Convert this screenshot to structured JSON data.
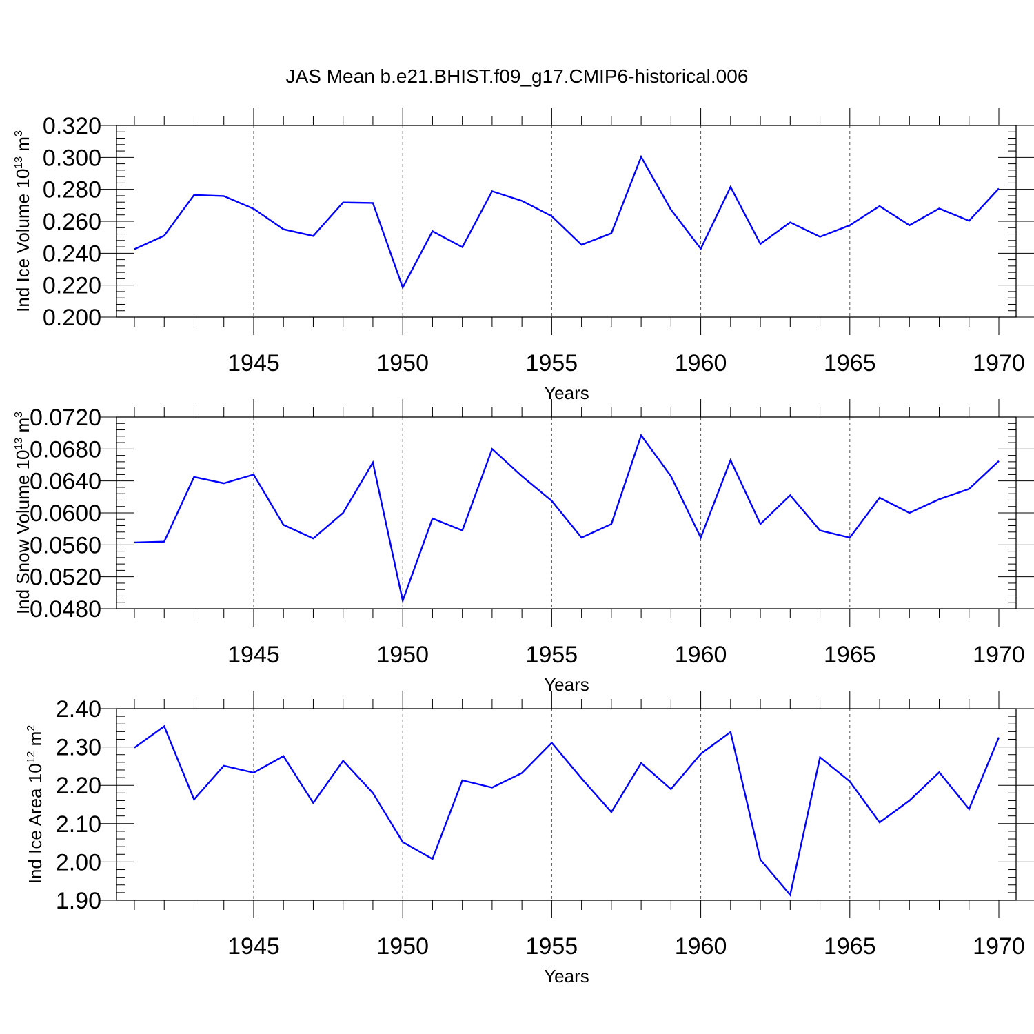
{
  "title": "JAS Mean b.e21.BHIST.f09_g17.CMIP6-historical.006",
  "colors": {
    "line": "#0000ff",
    "frame": "#000000",
    "grid": "#555555"
  },
  "chart_data": [
    {
      "type": "line",
      "xlabel": "Years",
      "ylabel": {
        "main": "Ind Ice Volume 10",
        "exp": "13",
        "unit": " m",
        "unit_exp": "3"
      },
      "xlim": [
        1941,
        1970
      ],
      "ylim": [
        0.2,
        0.32
      ],
      "xticks": [
        1945,
        1950,
        1955,
        1960,
        1965,
        1970
      ],
      "yticks": [
        "0.200",
        "0.220",
        "0.240",
        "0.260",
        "0.280",
        "0.300",
        "0.320"
      ],
      "grid": "vertical dashed at major x ticks",
      "x": [
        1941,
        1942,
        1943,
        1944,
        1945,
        1946,
        1947,
        1948,
        1949,
        1950,
        1951,
        1952,
        1953,
        1954,
        1955,
        1956,
        1957,
        1958,
        1959,
        1960,
        1961,
        1962,
        1963,
        1964,
        1965,
        1966,
        1967,
        1968,
        1969,
        1970
      ],
      "series": [
        {
          "values": [
            0.2425,
            0.251,
            0.2765,
            0.2758,
            0.2678,
            0.255,
            0.2508,
            0.2718,
            0.2715,
            0.2185,
            0.2538,
            0.2438,
            0.2788,
            0.2728,
            0.2632,
            0.2453,
            0.2525,
            0.3003,
            0.2673,
            0.2428,
            0.2815,
            0.2458,
            0.2593,
            0.2503,
            0.2575,
            0.2695,
            0.2575,
            0.268,
            0.2603,
            0.2805
          ]
        }
      ]
    },
    {
      "type": "line",
      "xlabel": "Years",
      "ylabel": {
        "main": "Ind Snow Volume 10",
        "exp": "13",
        "unit": " m",
        "unit_exp": "3"
      },
      "xlim": [
        1941,
        1970
      ],
      "ylim": [
        0.048,
        0.072
      ],
      "xticks": [
        1945,
        1950,
        1955,
        1960,
        1965,
        1970
      ],
      "yticks": [
        "0.0480",
        "0.0520",
        "0.0560",
        "0.0600",
        "0.0640",
        "0.0680",
        "0.0720"
      ],
      "grid": "vertical dashed at major x ticks",
      "x": [
        1941,
        1942,
        1943,
        1944,
        1945,
        1946,
        1947,
        1948,
        1949,
        1950,
        1951,
        1952,
        1953,
        1954,
        1955,
        1956,
        1957,
        1958,
        1959,
        1960,
        1961,
        1962,
        1963,
        1964,
        1965,
        1966,
        1967,
        1968,
        1969,
        1970
      ],
      "series": [
        {
          "values": [
            0.0563,
            0.0564,
            0.0645,
            0.0637,
            0.0648,
            0.0585,
            0.0568,
            0.06,
            0.0663,
            0.049,
            0.0593,
            0.0578,
            0.068,
            0.0646,
            0.0615,
            0.0569,
            0.0586,
            0.0697,
            0.0646,
            0.0569,
            0.0666,
            0.0586,
            0.0622,
            0.0578,
            0.0569,
            0.0619,
            0.06,
            0.0617,
            0.063,
            0.0665
          ]
        }
      ]
    },
    {
      "type": "line",
      "xlabel": "Years",
      "ylabel": {
        "main": "Ind Ice Area 10",
        "exp": "12",
        "unit": " m",
        "unit_exp": "2"
      },
      "xlim": [
        1941,
        1970
      ],
      "ylim": [
        1.9,
        2.4
      ],
      "xticks": [
        1945,
        1950,
        1955,
        1960,
        1965,
        1970
      ],
      "yticks": [
        "1.90",
        "2.00",
        "2.10",
        "2.20",
        "2.30",
        "2.40"
      ],
      "grid": "vertical dashed at major x ticks",
      "x": [
        1941,
        1942,
        1943,
        1944,
        1945,
        1946,
        1947,
        1948,
        1949,
        1950,
        1951,
        1952,
        1953,
        1954,
        1955,
        1956,
        1957,
        1958,
        1959,
        1960,
        1961,
        1962,
        1963,
        1964,
        1965,
        1966,
        1967,
        1968,
        1969,
        1970
      ],
      "series": [
        {
          "values": [
            2.298,
            2.354,
            2.163,
            2.251,
            2.233,
            2.276,
            2.154,
            2.264,
            2.18,
            2.052,
            2.008,
            2.213,
            2.194,
            2.232,
            2.311,
            2.218,
            2.13,
            2.258,
            2.19,
            2.282,
            2.339,
            2.006,
            1.914,
            2.273,
            2.21,
            2.103,
            2.16,
            2.234,
            2.138,
            2.325
          ]
        }
      ]
    }
  ]
}
